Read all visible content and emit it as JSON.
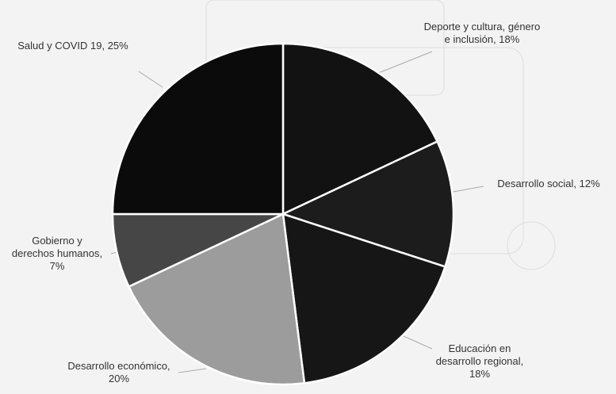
{
  "chart_data": {
    "type": "pie",
    "categories": [
      "Deporte y cultura, género e inclusión",
      "Desarrollo social",
      "Educación en desarrollo regional",
      "Desarrollo económico",
      "Gobierno y derechos humanos",
      "Salud y COVID 19"
    ],
    "values": [
      18,
      12,
      18,
      20,
      7,
      25
    ],
    "value_labels": [
      "Deporte y cultura, género e inclusión, 18%",
      "Desarrollo social, 12%",
      "Educación en desarrollo regional, 18%",
      "Desarrollo económico, 20%",
      "Gobierno y derechos humanos, 7%",
      "Salud y COVID 19, 25%"
    ],
    "colors": [
      "#121212",
      "#1c1c1c",
      "#161616",
      "#9c9c9c",
      "#464646",
      "#0b0b0b"
    ]
  }
}
